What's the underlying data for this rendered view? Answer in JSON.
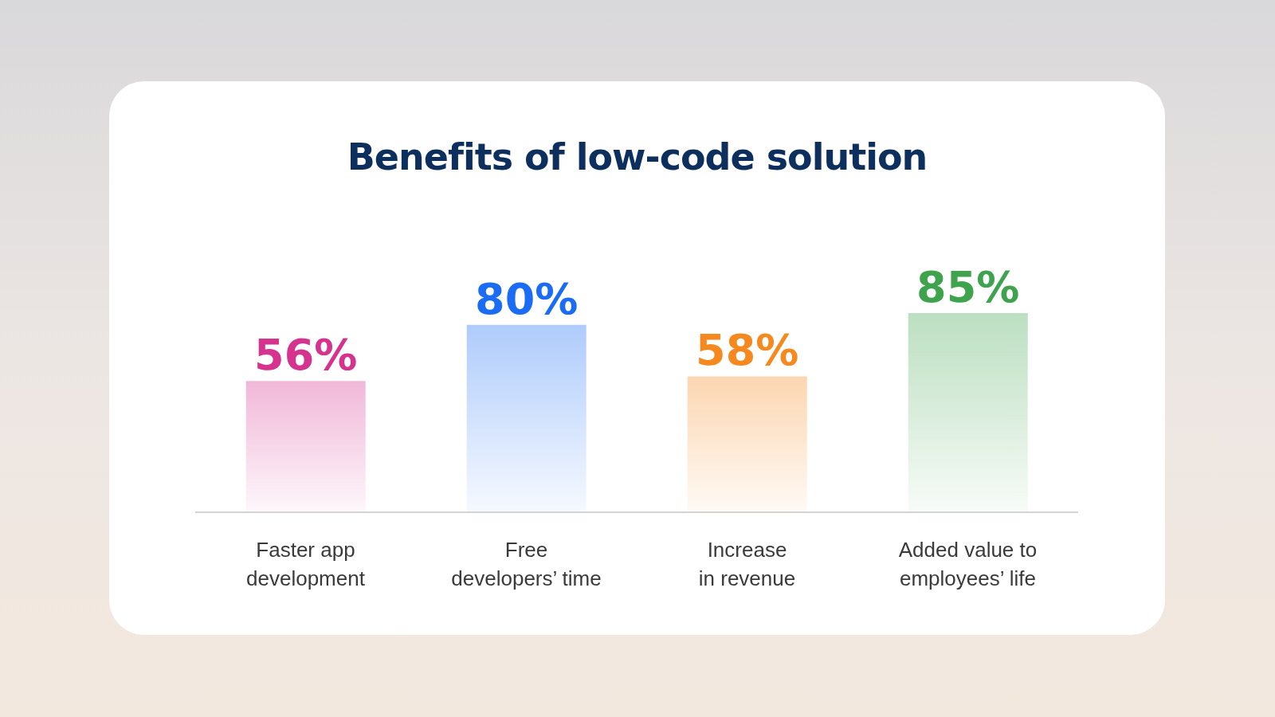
{
  "chart_data": {
    "type": "bar",
    "title": "Benefits of low-code solution",
    "categories": [
      "Faster app development",
      "Free developers’ time",
      "Increase in revenue",
      "Added value to employees’ life"
    ],
    "values": [
      56,
      80,
      58,
      85
    ],
    "colors": [
      "#d6338f",
      "#1a6cf5",
      "#f5891f",
      "#3fa34d"
    ],
    "value_labels": [
      "56%",
      "80%",
      "58%",
      "85%"
    ],
    "grid": false,
    "legend": false
  }
}
